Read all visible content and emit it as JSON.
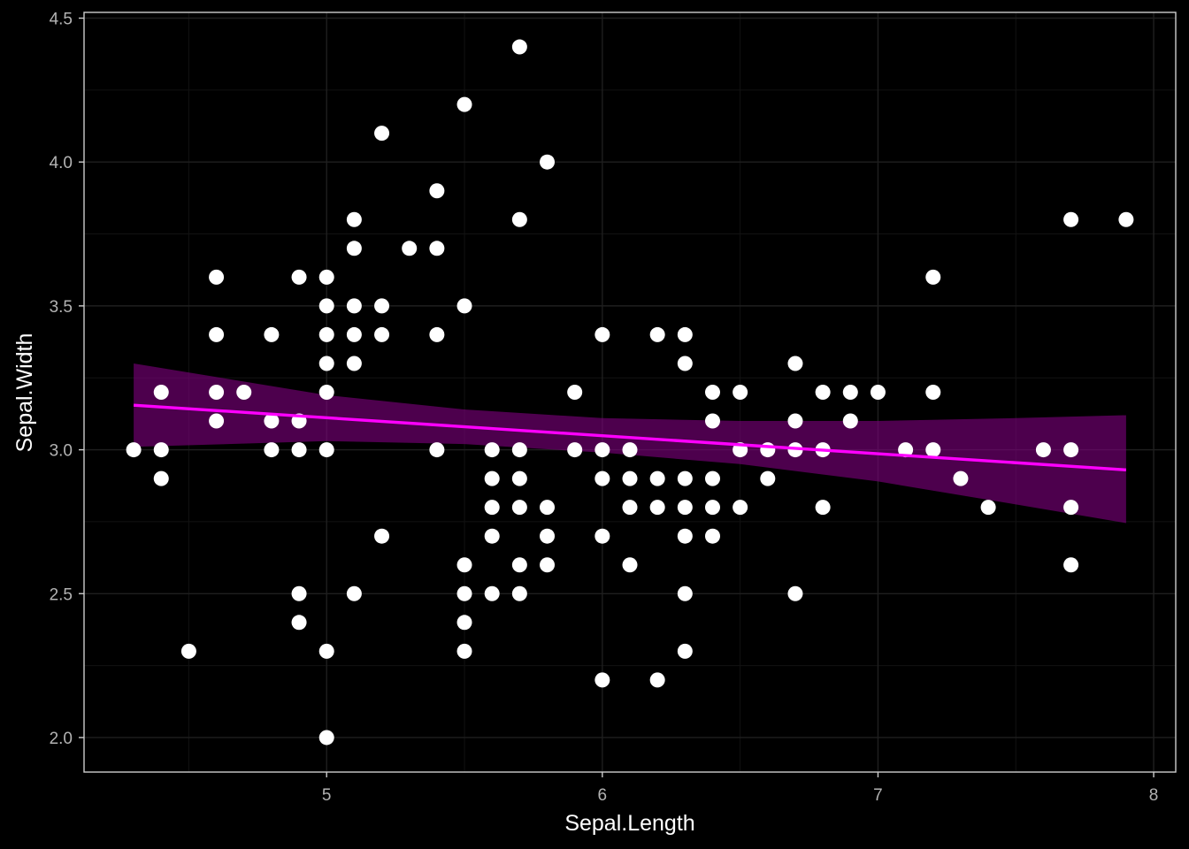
{
  "chart_data": {
    "type": "scatter",
    "title": "",
    "xlabel": "Sepal.Length",
    "ylabel": "Sepal.Width",
    "xlim": [
      4.12,
      8.08
    ],
    "ylim": [
      1.88,
      4.52
    ],
    "x_ticks": [
      5,
      6,
      7,
      8
    ],
    "y_ticks": [
      2.0,
      2.5,
      3.0,
      3.5,
      4.0,
      4.5
    ],
    "x_tick_labels": [
      "5",
      "6",
      "7",
      "8"
    ],
    "y_tick_labels": [
      "2.0",
      "2.5",
      "3.0",
      "3.5",
      "4.0",
      "4.5"
    ],
    "grid": true,
    "legend": "none",
    "colors": {
      "background": "#000000",
      "panel_border": "#cccccc",
      "grid_major": "#1f1f1f",
      "grid_minor": "#121212",
      "points": "#ffffff",
      "fit_line": "#ff00ff",
      "ribbon": "#4d004d",
      "tick_text": "#b3b3b3",
      "axis_title": "#ffffff"
    },
    "points": [
      [
        4.3,
        3.0
      ],
      [
        4.4,
        2.9
      ],
      [
        4.4,
        3.0
      ],
      [
        4.4,
        3.2
      ],
      [
        4.5,
        2.3
      ],
      [
        4.6,
        3.1
      ],
      [
        4.6,
        3.2
      ],
      [
        4.6,
        3.4
      ],
      [
        4.6,
        3.6
      ],
      [
        4.7,
        3.2
      ],
      [
        4.8,
        3.0
      ],
      [
        4.8,
        3.1
      ],
      [
        4.8,
        3.4
      ],
      [
        4.9,
        2.4
      ],
      [
        4.9,
        2.5
      ],
      [
        4.9,
        3.0
      ],
      [
        4.9,
        3.1
      ],
      [
        4.9,
        3.6
      ],
      [
        5.0,
        2.0
      ],
      [
        5.0,
        2.3
      ],
      [
        5.0,
        3.0
      ],
      [
        5.0,
        3.2
      ],
      [
        5.0,
        3.3
      ],
      [
        5.0,
        3.4
      ],
      [
        5.0,
        3.5
      ],
      [
        5.0,
        3.6
      ],
      [
        5.1,
        2.5
      ],
      [
        5.1,
        3.3
      ],
      [
        5.1,
        3.4
      ],
      [
        5.1,
        3.5
      ],
      [
        5.1,
        3.7
      ],
      [
        5.1,
        3.8
      ],
      [
        5.2,
        2.7
      ],
      [
        5.2,
        3.4
      ],
      [
        5.2,
        3.5
      ],
      [
        5.2,
        4.1
      ],
      [
        5.3,
        3.7
      ],
      [
        5.4,
        3.0
      ],
      [
        5.4,
        3.4
      ],
      [
        5.4,
        3.7
      ],
      [
        5.4,
        3.9
      ],
      [
        5.5,
        2.3
      ],
      [
        5.5,
        2.4
      ],
      [
        5.5,
        2.5
      ],
      [
        5.5,
        2.6
      ],
      [
        5.5,
        3.5
      ],
      [
        5.5,
        4.2
      ],
      [
        5.6,
        2.5
      ],
      [
        5.6,
        2.7
      ],
      [
        5.6,
        2.8
      ],
      [
        5.6,
        2.9
      ],
      [
        5.6,
        3.0
      ],
      [
        5.7,
        2.5
      ],
      [
        5.7,
        2.6
      ],
      [
        5.7,
        2.8
      ],
      [
        5.7,
        2.9
      ],
      [
        5.7,
        3.0
      ],
      [
        5.7,
        3.8
      ],
      [
        5.7,
        4.4
      ],
      [
        5.8,
        2.6
      ],
      [
        5.8,
        2.7
      ],
      [
        5.8,
        2.8
      ],
      [
        5.8,
        4.0
      ],
      [
        5.9,
        3.0
      ],
      [
        5.9,
        3.2
      ],
      [
        6.0,
        2.2
      ],
      [
        6.0,
        2.7
      ],
      [
        6.0,
        2.9
      ],
      [
        6.0,
        3.0
      ],
      [
        6.0,
        3.4
      ],
      [
        6.1,
        2.6
      ],
      [
        6.1,
        2.8
      ],
      [
        6.1,
        2.9
      ],
      [
        6.1,
        3.0
      ],
      [
        6.2,
        2.2
      ],
      [
        6.2,
        2.8
      ],
      [
        6.2,
        2.9
      ],
      [
        6.2,
        3.4
      ],
      [
        6.3,
        2.3
      ],
      [
        6.3,
        2.5
      ],
      [
        6.3,
        2.7
      ],
      [
        6.3,
        2.8
      ],
      [
        6.3,
        2.9
      ],
      [
        6.3,
        3.3
      ],
      [
        6.3,
        3.4
      ],
      [
        6.4,
        2.7
      ],
      [
        6.4,
        2.8
      ],
      [
        6.4,
        2.9
      ],
      [
        6.4,
        3.1
      ],
      [
        6.4,
        3.2
      ],
      [
        6.5,
        2.8
      ],
      [
        6.5,
        3.0
      ],
      [
        6.5,
        3.2
      ],
      [
        6.6,
        2.9
      ],
      [
        6.6,
        3.0
      ],
      [
        6.7,
        2.5
      ],
      [
        6.7,
        3.0
      ],
      [
        6.7,
        3.1
      ],
      [
        6.7,
        3.3
      ],
      [
        6.8,
        2.8
      ],
      [
        6.8,
        3.0
      ],
      [
        6.8,
        3.2
      ],
      [
        6.9,
        3.1
      ],
      [
        6.9,
        3.2
      ],
      [
        7.0,
        3.2
      ],
      [
        7.1,
        3.0
      ],
      [
        7.2,
        3.0
      ],
      [
        7.2,
        3.2
      ],
      [
        7.2,
        3.6
      ],
      [
        7.3,
        2.9
      ],
      [
        7.4,
        2.8
      ],
      [
        7.6,
        3.0
      ],
      [
        7.7,
        2.6
      ],
      [
        7.7,
        2.8
      ],
      [
        7.7,
        3.0
      ],
      [
        7.7,
        3.8
      ],
      [
        7.9,
        3.8
      ]
    ],
    "fit_line": {
      "x": [
        4.3,
        7.9
      ],
      "y": [
        3.155,
        2.93
      ]
    },
    "ribbon": {
      "x": [
        4.3,
        5.0,
        5.5,
        6.0,
        6.5,
        7.0,
        7.5,
        7.9
      ],
      "lower": [
        3.01,
        3.03,
        3.02,
        2.99,
        2.95,
        2.89,
        2.81,
        2.745
      ],
      "upper": [
        3.3,
        3.19,
        3.14,
        3.11,
        3.1,
        3.1,
        3.11,
        3.12
      ]
    }
  }
}
